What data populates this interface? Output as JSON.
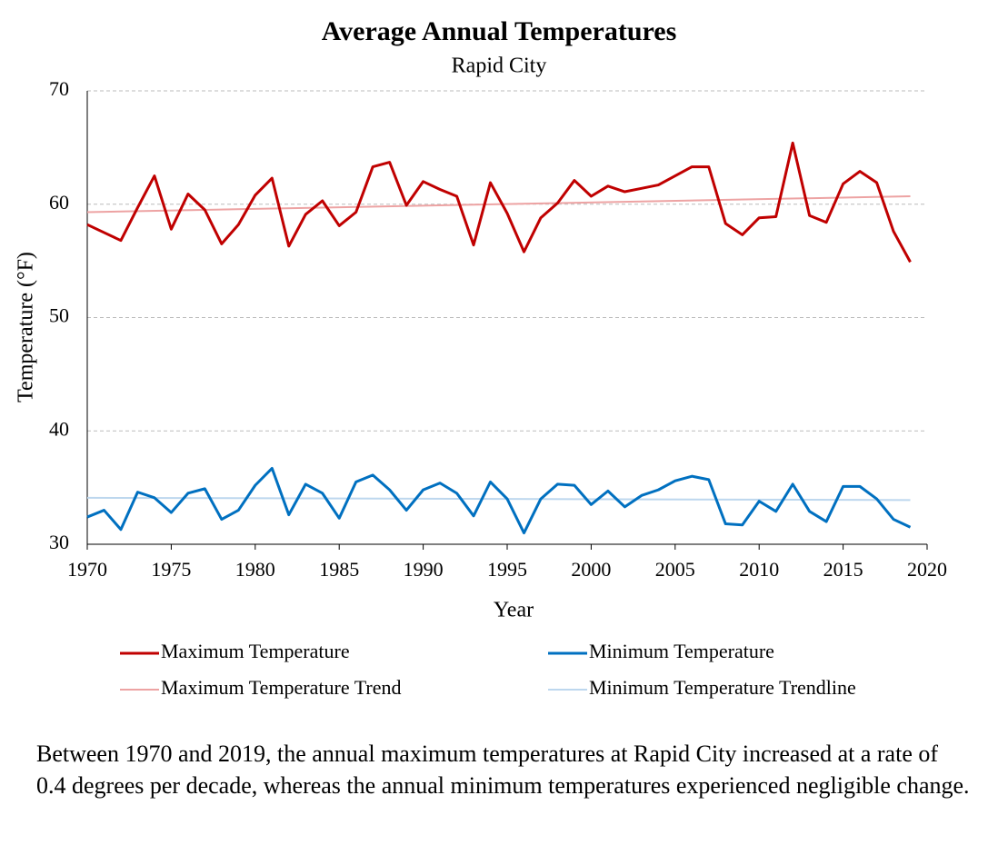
{
  "chart_data": {
    "type": "line",
    "title": "Average Annual Temperatures",
    "subtitle": "Rapid City",
    "x_label": "Year",
    "y_label": "Temperature (°F)",
    "x": [
      1970,
      1971,
      1972,
      1973,
      1974,
      1975,
      1976,
      1977,
      1978,
      1979,
      1980,
      1981,
      1982,
      1983,
      1984,
      1985,
      1986,
      1987,
      1988,
      1989,
      1990,
      1991,
      1992,
      1993,
      1994,
      1995,
      1996,
      1997,
      1998,
      1999,
      2000,
      2001,
      2002,
      2003,
      2004,
      2005,
      2006,
      2007,
      2008,
      2009,
      2010,
      2011,
      2012,
      2013,
      2014,
      2015,
      2016,
      2017,
      2018,
      2019
    ],
    "series": [
      {
        "name": "Maximum Temperature",
        "color": "#c00000",
        "width": 3,
        "values": [
          58.2,
          57.5,
          56.8,
          59.7,
          62.5,
          57.8,
          60.9,
          59.5,
          56.5,
          58.2,
          60.8,
          62.3,
          56.3,
          59.1,
          60.3,
          58.1,
          59.3,
          63.3,
          63.7,
          59.9,
          62.0,
          61.3,
          60.7,
          56.4,
          61.9,
          59.2,
          55.8,
          58.8,
          60.1,
          62.1,
          60.7,
          61.6,
          61.1,
          61.4,
          61.7,
          62.5,
          63.3,
          63.3,
          58.3,
          57.3,
          58.8,
          58.9,
          65.4,
          59.0,
          58.4,
          61.8,
          62.9,
          61.9,
          57.6,
          54.9
        ]
      },
      {
        "name": "Minimum Temperature",
        "color": "#0070c0",
        "width": 3,
        "values": [
          32.4,
          33.0,
          31.3,
          34.6,
          34.1,
          32.8,
          34.5,
          34.9,
          32.2,
          33.0,
          35.2,
          36.7,
          32.6,
          35.3,
          34.5,
          32.3,
          35.5,
          36.1,
          34.8,
          33.0,
          34.8,
          35.4,
          34.5,
          32.5,
          35.5,
          34.0,
          31.0,
          34.0,
          35.3,
          35.2,
          33.5,
          34.7,
          33.3,
          34.3,
          34.8,
          35.6,
          36.0,
          35.7,
          31.8,
          31.7,
          33.8,
          32.9,
          35.3,
          32.9,
          32.0,
          35.1,
          35.1,
          34.0,
          32.2,
          31.5
        ]
      },
      {
        "name": "Maximum Temperature Trend",
        "color": "#eda3a3",
        "width": 2,
        "x": [
          1970,
          2019
        ],
        "values": [
          59.3,
          60.7
        ]
      },
      {
        "name": "Minimum Temperature Trendline",
        "color": "#bdd7ee",
        "width": 2,
        "x": [
          1970,
          2019
        ],
        "values": [
          34.1,
          33.9
        ]
      }
    ],
    "xlim": [
      1970,
      2020
    ],
    "xticks": [
      1970,
      1975,
      1980,
      1985,
      1990,
      1995,
      2000,
      2005,
      2010,
      2015,
      2020
    ],
    "ylim": [
      30,
      70
    ],
    "yticks": [
      30,
      40,
      50,
      60,
      70
    ],
    "grid": true,
    "caption": "Between 1970 and 2019, the annual maximum temperatures at Rapid City increased at a rate of 0.4 degrees per decade, whereas the annual minimum temperatures experienced negligible change."
  }
}
